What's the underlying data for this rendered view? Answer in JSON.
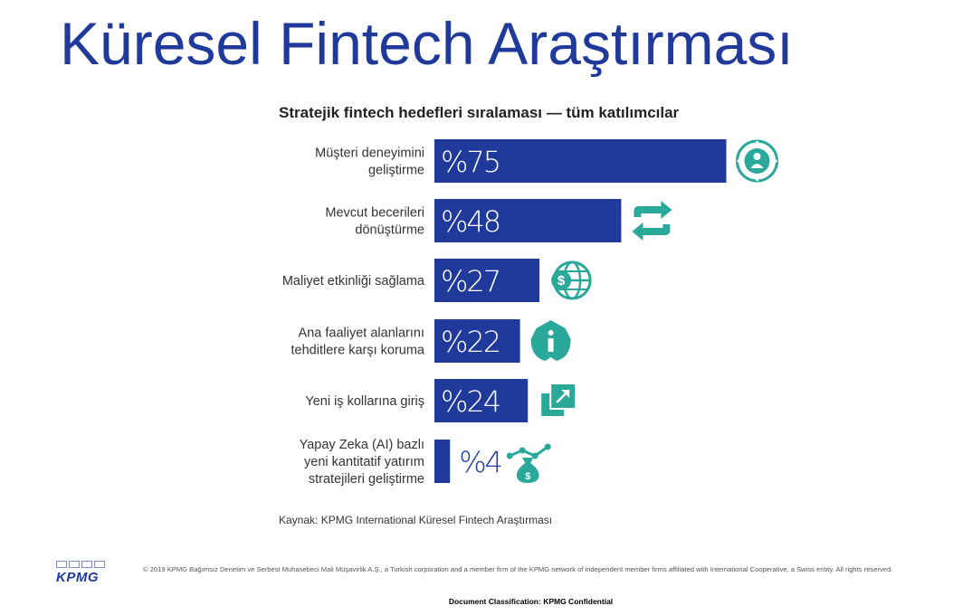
{
  "page": {
    "title": "Küresel Fintech Araştırması",
    "source": "Kaynak: KPMG International Küresel Fintech Araştırması",
    "logo_text": "KPMG",
    "copyright": "© 2019 KPMG Bağımsız Denetim ve Serbest Muhasebeci Mali Müşavirlik A.Ş., a Turkish corporation and a member firm of the KPMG network of independent member firms affiliated with International Cooperative, a Swiss entity. All rights reserved.",
    "classification": "Document Classification: KPMG Confidential"
  },
  "colors": {
    "title": "#1f3a9a",
    "bar": "#1f3a9a",
    "icon": "#2aa89a",
    "value_on_bar": "#ffffff",
    "value_off_bar": "#1f3a9a"
  },
  "chart_data": {
    "type": "bar",
    "orientation": "horizontal",
    "title": "Stratejik fintech hedefleri sıralaması — tüm katılımcılar",
    "xlim": [
      0,
      100
    ],
    "categories": [
      [
        "Müşteri deneyimini",
        "geliştirme"
      ],
      [
        "Mevcut becerileri",
        "dönüştürme"
      ],
      [
        "Maliyet etkinliği sağlama"
      ],
      [
        "Ana faaliyet alanlarını",
        "tehditlere karşı koruma"
      ],
      [
        "Yeni iş kollarına giriş"
      ],
      [
        "Yapay Zeka (AI) bazlı",
        "yeni kantitatif yatırım",
        "stratejileri geliştirme"
      ]
    ],
    "values": [
      75,
      48,
      27,
      22,
      24,
      4
    ],
    "value_labels": [
      "%75",
      "%48",
      "%27",
      "%22",
      "%24",
      "%4"
    ],
    "icons": [
      "customer-target-icon",
      "transform-arrows-icon",
      "globe-dollar-icon",
      "shield-info-icon",
      "new-direction-icon",
      "ai-money-bag-icon"
    ]
  }
}
